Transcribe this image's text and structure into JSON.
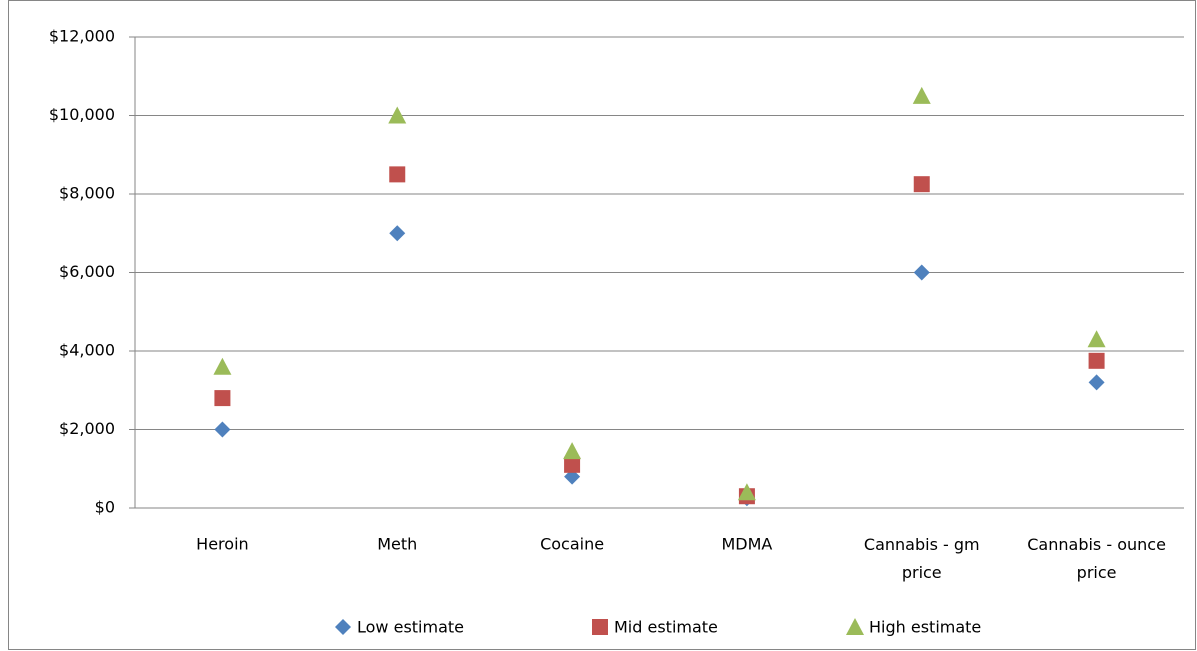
{
  "chart_data": {
    "type": "scatter",
    "categories": [
      "Heroin",
      "Meth",
      "Cocaine",
      "MDMA",
      "Cannabis - gm price",
      "Cannabis - ounce price"
    ],
    "series": [
      {
        "name": "Low estimate",
        "color": "#4f81bd",
        "marker": "diamond",
        "values": [
          2000,
          7000,
          800,
          250,
          6000,
          3200
        ]
      },
      {
        "name": "Mid estimate",
        "color": "#c0504d",
        "marker": "square",
        "values": [
          2800,
          8500,
          1100,
          300,
          8250,
          3750
        ]
      },
      {
        "name": "High estimate",
        "color": "#9bbb59",
        "marker": "triangle",
        "values": [
          3600,
          10000,
          1450,
          400,
          10500,
          4300
        ]
      }
    ],
    "ylim": [
      0,
      12000
    ],
    "yticks": [
      {
        "value": 0,
        "label": "$0"
      },
      {
        "value": 2000,
        "label": "$2,000"
      },
      {
        "value": 4000,
        "label": "$4,000"
      },
      {
        "value": 6000,
        "label": "$6,000"
      },
      {
        "value": 8000,
        "label": "$8,000"
      },
      {
        "value": 10000,
        "label": "$10,000"
      },
      {
        "value": 12000,
        "label": "$12,000"
      }
    ],
    "grid": true,
    "legend": "bottom"
  }
}
